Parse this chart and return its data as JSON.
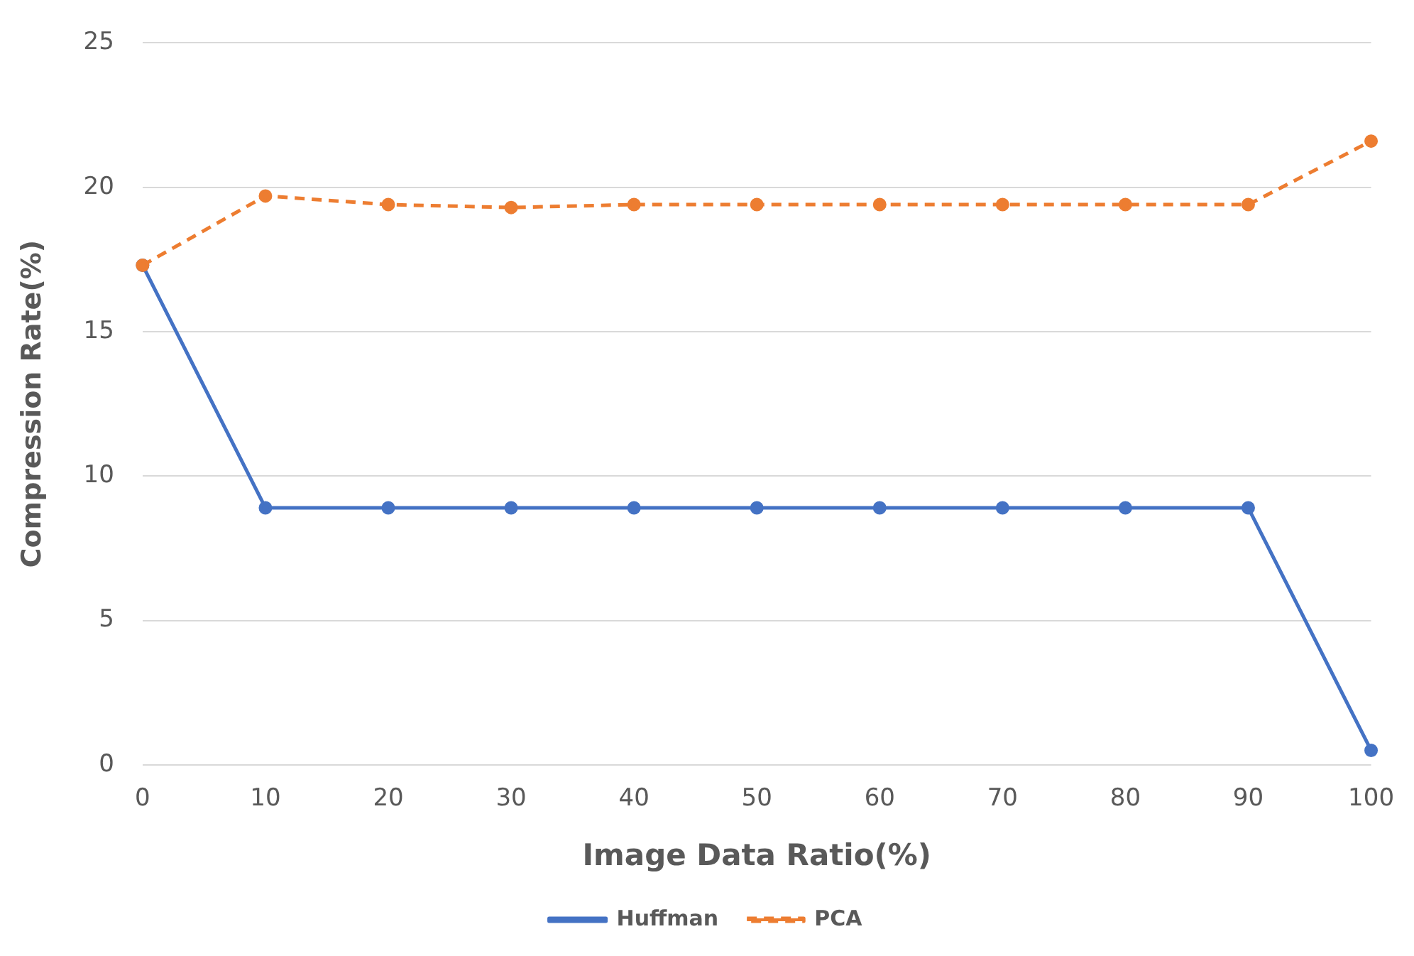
{
  "chart_data": {
    "type": "line",
    "xlabel": "Image Data Ratio(%)",
    "ylabel": "Compression Rate(%)",
    "categories": [
      "0",
      "10",
      "20",
      "30",
      "40",
      "50",
      "60",
      "70",
      "80",
      "90",
      "100"
    ],
    "series": [
      {
        "name": "Huffman",
        "color": "#4472c4",
        "line_style": "solid",
        "values": [
          17.3,
          8.9,
          8.9,
          8.9,
          8.9,
          8.9,
          8.9,
          8.9,
          8.9,
          8.9,
          0.5
        ]
      },
      {
        "name": "PCA",
        "color": "#ed7d31",
        "line_style": "dashed",
        "values": [
          17.3,
          19.7,
          19.4,
          19.3,
          19.4,
          19.4,
          19.4,
          19.4,
          19.4,
          19.4,
          21.6
        ]
      }
    ],
    "ylim": [
      0,
      25
    ],
    "yticks": [
      0,
      5,
      10,
      15,
      20,
      25
    ],
    "grid": "y",
    "legend": "bottom",
    "marker": "circle"
  }
}
